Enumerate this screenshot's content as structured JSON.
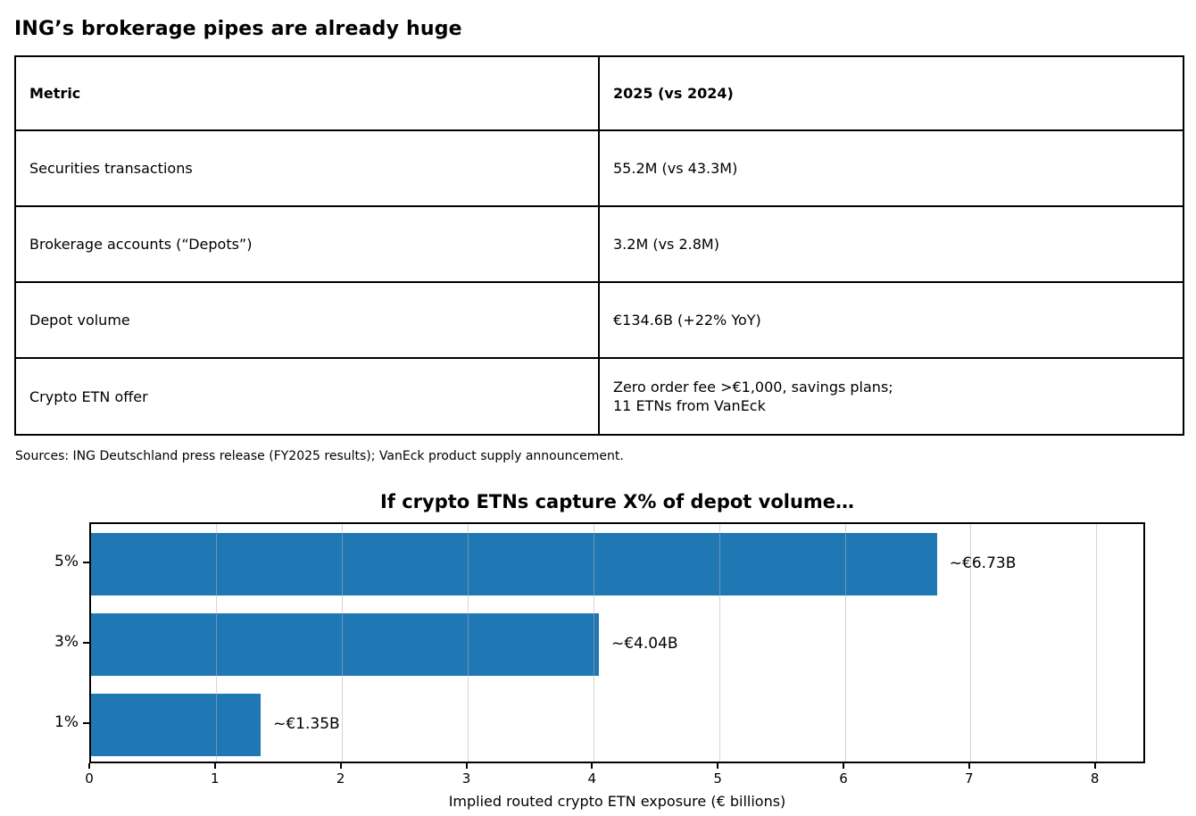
{
  "page": {
    "title": "ING’s brokerage pipes are already huge",
    "sources": "Sources: ING Deutschland press release (FY2025 results); VanEck product supply announcement."
  },
  "table": {
    "headers": [
      "Metric",
      "2025 (vs 2024)"
    ],
    "rows": [
      {
        "metric": "Securities transactions",
        "value": "55.2M (vs 43.3M)"
      },
      {
        "metric": "Brokerage accounts (“Depots”)",
        "value": "3.2M (vs 2.8M)"
      },
      {
        "metric": "Depot volume",
        "value": "€134.6B (+22% YoY)"
      },
      {
        "metric": "Crypto ETN offer",
        "value": "Zero order fee >€1,000, savings plans;\n11 ETNs from VanEck"
      }
    ]
  },
  "chart_data": {
    "type": "bar",
    "orientation": "horizontal",
    "title": "If crypto ETNs capture X% of depot volume…",
    "categories": [
      "5%",
      "3%",
      "1%"
    ],
    "values": [
      6.73,
      4.04,
      1.35
    ],
    "bar_labels": [
      "~€6.73B",
      "~€4.04B",
      "~€1.35B"
    ],
    "xlabel": "Implied routed crypto ETN exposure (€ billions)",
    "xticks": [
      0,
      1,
      2,
      3,
      4,
      5,
      6,
      7,
      8
    ],
    "xlim": [
      0,
      8.4
    ],
    "bar_color": "#1f77b4",
    "grid": true,
    "legend": null
  }
}
